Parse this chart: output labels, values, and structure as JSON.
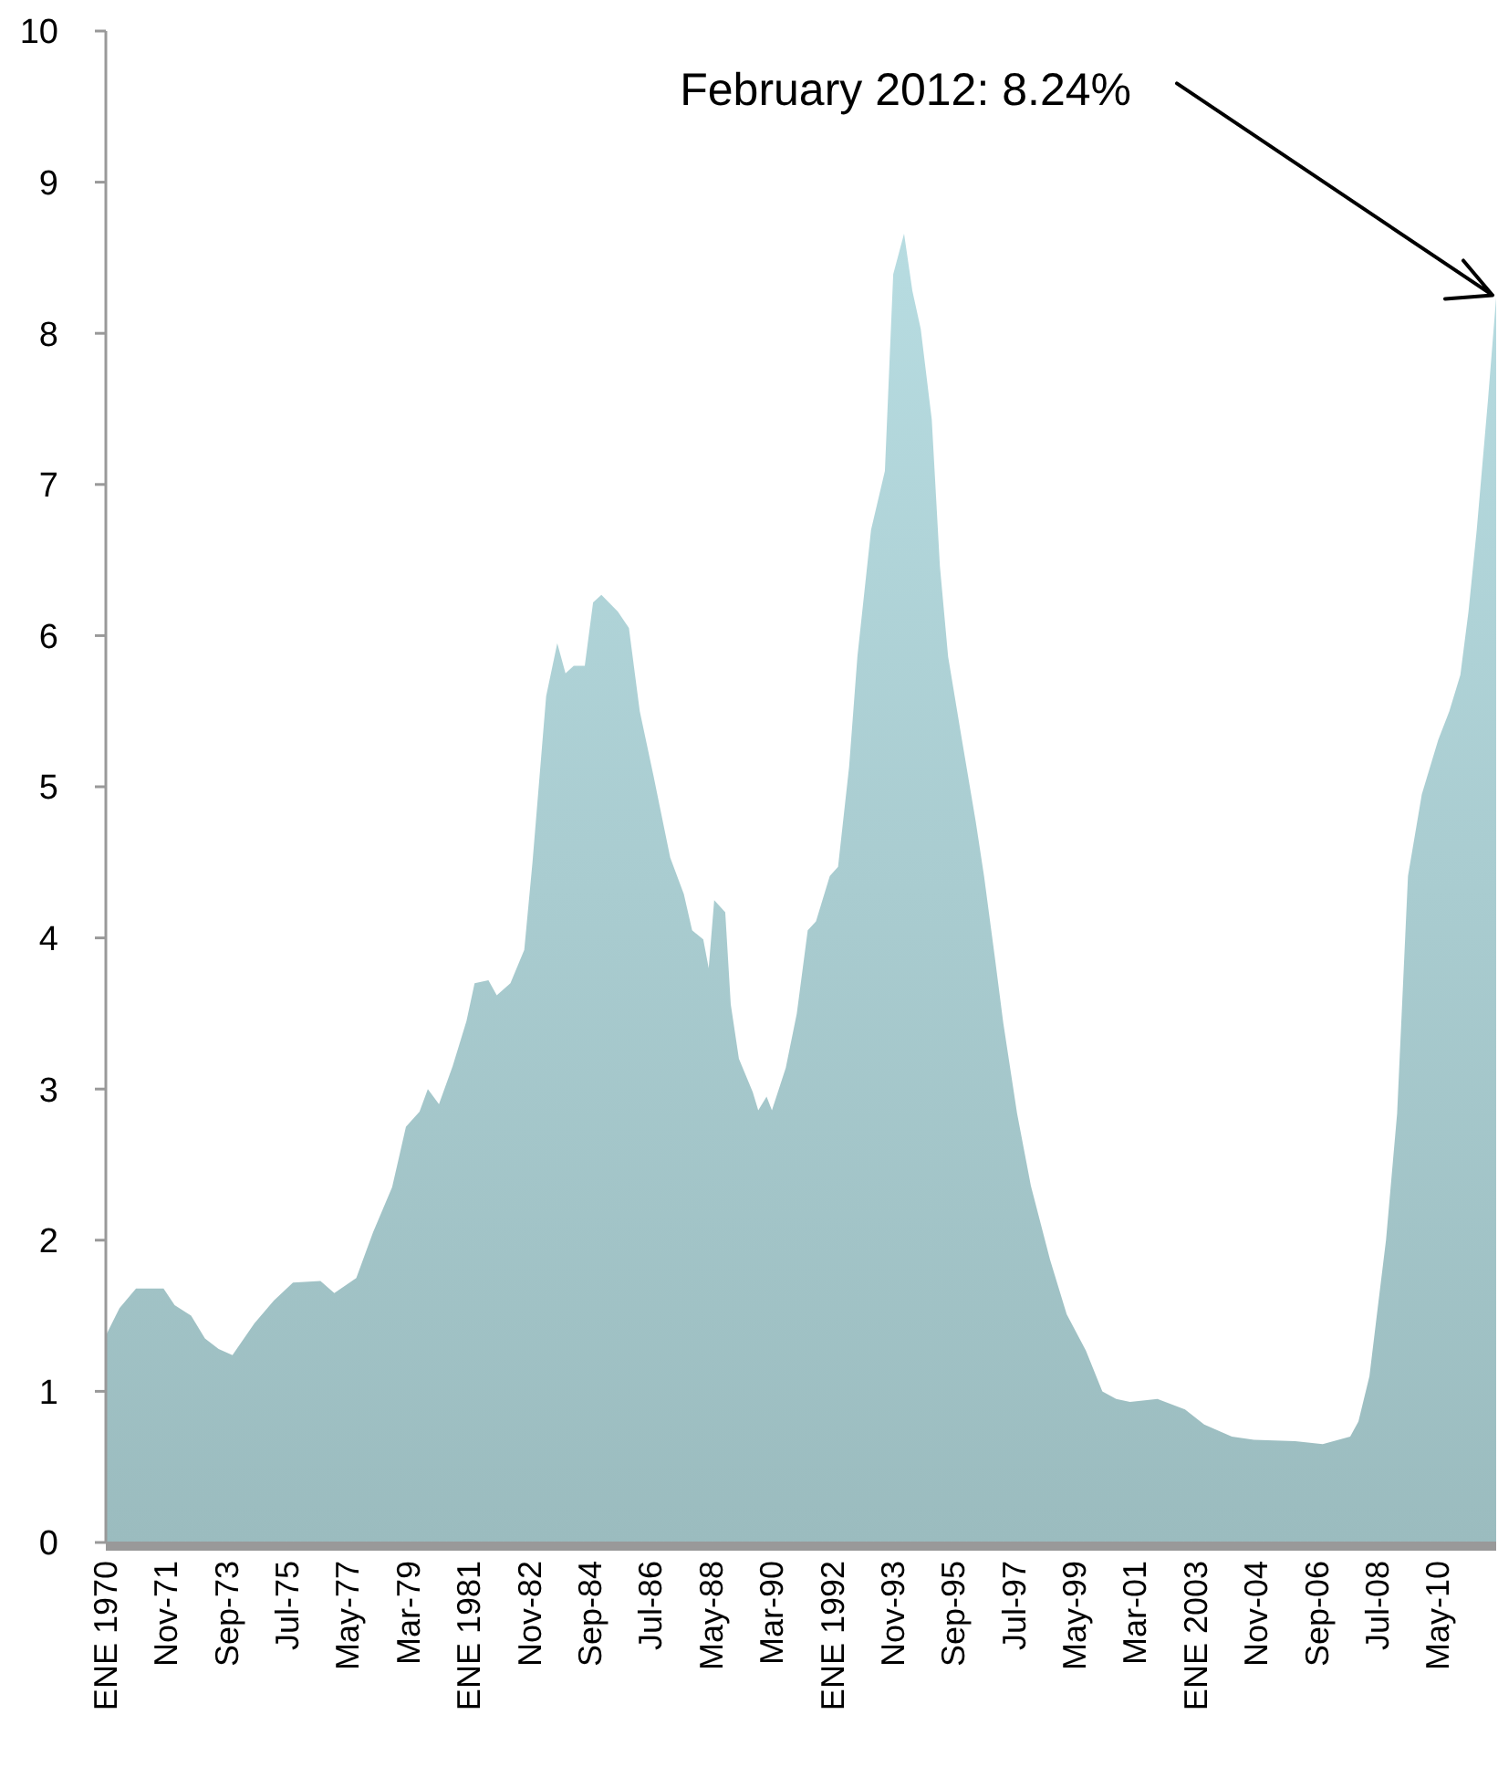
{
  "chart_data": {
    "type": "area",
    "x": [
      "1970-01",
      "1970-06",
      "1970-12",
      "1971-10",
      "1972-02",
      "1972-08",
      "1973-01",
      "1973-06",
      "1973-11",
      "1974-07",
      "1975-02",
      "1975-09",
      "1976-07",
      "1976-12",
      "1977-08",
      "1978-02",
      "1978-09",
      "1979-02",
      "1979-07",
      "1979-10",
      "1980-02",
      "1980-07",
      "1980-12",
      "1981-03",
      "1981-08",
      "1981-11",
      "1982-04",
      "1982-09",
      "1982-12",
      "1983-05",
      "1983-09",
      "1983-12",
      "1984-03",
      "1984-07",
      "1984-10",
      "1985-01",
      "1985-07",
      "1985-11",
      "1986-03",
      "1986-08",
      "1986-10",
      "1987-02",
      "1987-07",
      "1987-10",
      "1988-02",
      "1988-04",
      "1988-06",
      "1988-10",
      "1988-12",
      "1989-03",
      "1989-08",
      "1989-10",
      "1990-01",
      "1990-03",
      "1990-08",
      "1990-12",
      "1991-04",
      "1991-07",
      "1991-12",
      "1992-03",
      "1992-07",
      "1992-10",
      "1993-03",
      "1993-08",
      "1993-11",
      "1994-03",
      "1994-06",
      "1994-09",
      "1995-01",
      "1995-04",
      "1995-07",
      "1995-12",
      "1996-05",
      "1996-08",
      "1996-12",
      "1997-03",
      "1997-08",
      "1998-01",
      "1998-08",
      "1999-02",
      "1999-09",
      "2000-03",
      "2000-08",
      "2001-01",
      "2001-11",
      "2002-09",
      "2003-04",
      "2004-02",
      "2004-10",
      "2006-01",
      "2006-11",
      "2007-09",
      "2007-12",
      "2008-04",
      "2008-07",
      "2008-10",
      "2009-02",
      "2009-06",
      "2009-11",
      "2010-05",
      "2010-09",
      "2011-01",
      "2011-04",
      "2011-07",
      "2011-11",
      "2012-02"
    ],
    "series": [
      {
        "color": "#a6cacd",
        "values": [
          1.37,
          1.55,
          1.68,
          1.68,
          1.57,
          1.5,
          1.35,
          1.28,
          1.24,
          1.45,
          1.6,
          1.72,
          1.73,
          1.65,
          1.75,
          2.05,
          2.35,
          2.75,
          2.85,
          3.0,
          2.9,
          3.15,
          3.45,
          3.7,
          3.72,
          3.62,
          3.7,
          3.92,
          4.5,
          5.6,
          5.95,
          5.75,
          5.8,
          5.8,
          6.22,
          6.27,
          6.16,
          6.05,
          5.5,
          5.07,
          4.89,
          4.53,
          4.29,
          4.05,
          3.99,
          3.8,
          4.25,
          4.17,
          3.56,
          3.2,
          2.98,
          2.86,
          2.95,
          2.86,
          3.14,
          3.5,
          4.05,
          4.11,
          4.41,
          4.47,
          5.13,
          5.86,
          6.7,
          7.09,
          8.39,
          8.66,
          8.28,
          8.03,
          7.43,
          6.46,
          5.86,
          5.31,
          4.77,
          4.41,
          3.86,
          3.44,
          2.84,
          2.36,
          1.87,
          1.51,
          1.27,
          1.0,
          0.95,
          0.93,
          0.95,
          0.88,
          0.78,
          0.7,
          0.68,
          0.67,
          0.65,
          0.7,
          0.8,
          1.1,
          1.55,
          2.0,
          2.84,
          4.41,
          4.95,
          5.31,
          5.5,
          5.74,
          6.16,
          6.7,
          7.55,
          8.24
        ]
      }
    ],
    "xlim": [
      "1970-01",
      "2012-02"
    ],
    "xticks": [
      {
        "value": "1970-01",
        "label": "ENE 1970"
      },
      {
        "value": "1971-11",
        "label": "Nov-71"
      },
      {
        "value": "1973-09",
        "label": "Sep-73"
      },
      {
        "value": "1975-07",
        "label": "Jul-75"
      },
      {
        "value": "1977-05",
        "label": "May-77"
      },
      {
        "value": "1979-03",
        "label": "Mar-79"
      },
      {
        "value": "1981-01",
        "label": "ENE 1981"
      },
      {
        "value": "1982-11",
        "label": "Nov-82"
      },
      {
        "value": "1984-09",
        "label": "Sep-84"
      },
      {
        "value": "1986-07",
        "label": "Jul-86"
      },
      {
        "value": "1988-05",
        "label": "May-88"
      },
      {
        "value": "1990-03",
        "label": "Mar-90"
      },
      {
        "value": "1992-01",
        "label": "ENE 1992"
      },
      {
        "value": "1993-11",
        "label": "Nov-93"
      },
      {
        "value": "1995-09",
        "label": "Sep-95"
      },
      {
        "value": "1997-07",
        "label": "Jul-97"
      },
      {
        "value": "1999-05",
        "label": "May-99"
      },
      {
        "value": "2001-03",
        "label": "Mar-01"
      },
      {
        "value": "2003-01",
        "label": "ENE 2003"
      },
      {
        "value": "2004-11",
        "label": "Nov-04"
      },
      {
        "value": "2006-09",
        "label": "Sep-06"
      },
      {
        "value": "2008-07",
        "label": "Jul-08"
      },
      {
        "value": "2010-05",
        "label": "May-10"
      }
    ],
    "ylim": [
      0,
      10
    ],
    "yticks": [
      0,
      1,
      2,
      3,
      4,
      5,
      6,
      7,
      8,
      9,
      10
    ],
    "annotations": [
      {
        "text": "February 2012: 8.24%",
        "x": "2012-02",
        "y": 8.24
      }
    ]
  }
}
